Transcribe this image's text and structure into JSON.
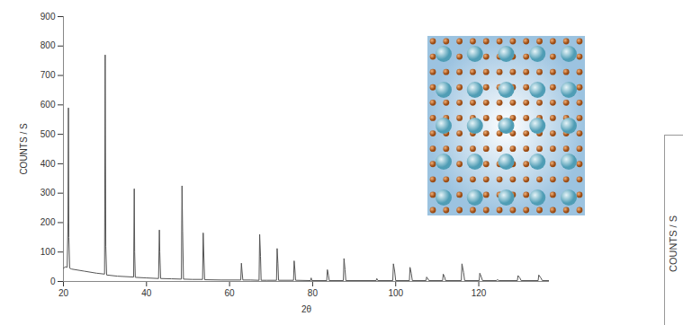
{
  "chart_data": [
    {
      "type": "line",
      "x_label": "2θ",
      "y_label": "COUNTS / S",
      "color": "#555555",
      "x": [
        20,
        20.5,
        20.9,
        21.1,
        21.2,
        21.3,
        21.5,
        22,
        25,
        28,
        29.9,
        30.05,
        30.2,
        30.4,
        33,
        36.9,
        37.05,
        37.15,
        37.3,
        40,
        42.9,
        43.1,
        43.2,
        43.4,
        46,
        48.4,
        48.55,
        48.7,
        48.9,
        51,
        53.5,
        53.65,
        53.8,
        54,
        58,
        62.7,
        62.85,
        63,
        63.2,
        65,
        67.1,
        67.25,
        67.45,
        67.6,
        69,
        71.3,
        71.45,
        71.65,
        71.8,
        75.4,
        75.55,
        75.75,
        75.9,
        79.5,
        79.65,
        79.8,
        83.4,
        83.55,
        83.8,
        84,
        87.4,
        87.55,
        87.8,
        88,
        95.3,
        95.45,
        95.7,
        99.3,
        99.45,
        99.75,
        100,
        103.3,
        103.45,
        103.75,
        104,
        107.3,
        107.45,
        107.8,
        108,
        111.3,
        111.45,
        111.8,
        112,
        115.8,
        115.95,
        116.35,
        116.6,
        120.1,
        120.25,
        120.65,
        120.9,
        124.3,
        124.45,
        124.9,
        129.3,
        129.45,
        129.9,
        130.2,
        134.3,
        134.45,
        134.95,
        135.3,
        137
      ],
      "values": [
        45,
        50,
        48,
        200,
        590,
        150,
        45,
        42,
        35,
        28,
        25,
        770,
        120,
        22,
        18,
        15,
        315,
        100,
        14,
        12,
        10,
        175,
        100,
        10,
        9,
        8,
        325,
        170,
        8,
        7,
        7,
        165,
        90,
        6,
        5,
        5,
        62,
        35,
        5,
        5,
        4,
        160,
        85,
        4,
        4,
        4,
        112,
        60,
        4,
        4,
        70,
        38,
        4,
        3,
        12,
        3,
        3,
        40,
        22,
        3,
        3,
        78,
        40,
        3,
        3,
        10,
        3,
        3,
        60,
        35,
        3,
        3,
        48,
        28,
        3,
        3,
        15,
        8,
        3,
        3,
        25,
        14,
        3,
        3,
        60,
        30,
        3,
        3,
        28,
        14,
        3,
        3,
        6,
        3,
        3,
        20,
        12,
        3,
        3,
        22,
        12,
        3,
        3
      ],
      "xlim": [
        20,
        137
      ],
      "xticks": [
        20,
        40,
        60,
        80,
        100,
        120
      ],
      "ylim": [
        0,
        900
      ],
      "yticks": [
        0,
        100,
        200,
        300,
        400,
        500,
        600,
        700,
        800,
        900
      ]
    },
    {
      "type": "line",
      "y_label": "COUNTS / S"
    }
  ]
}
